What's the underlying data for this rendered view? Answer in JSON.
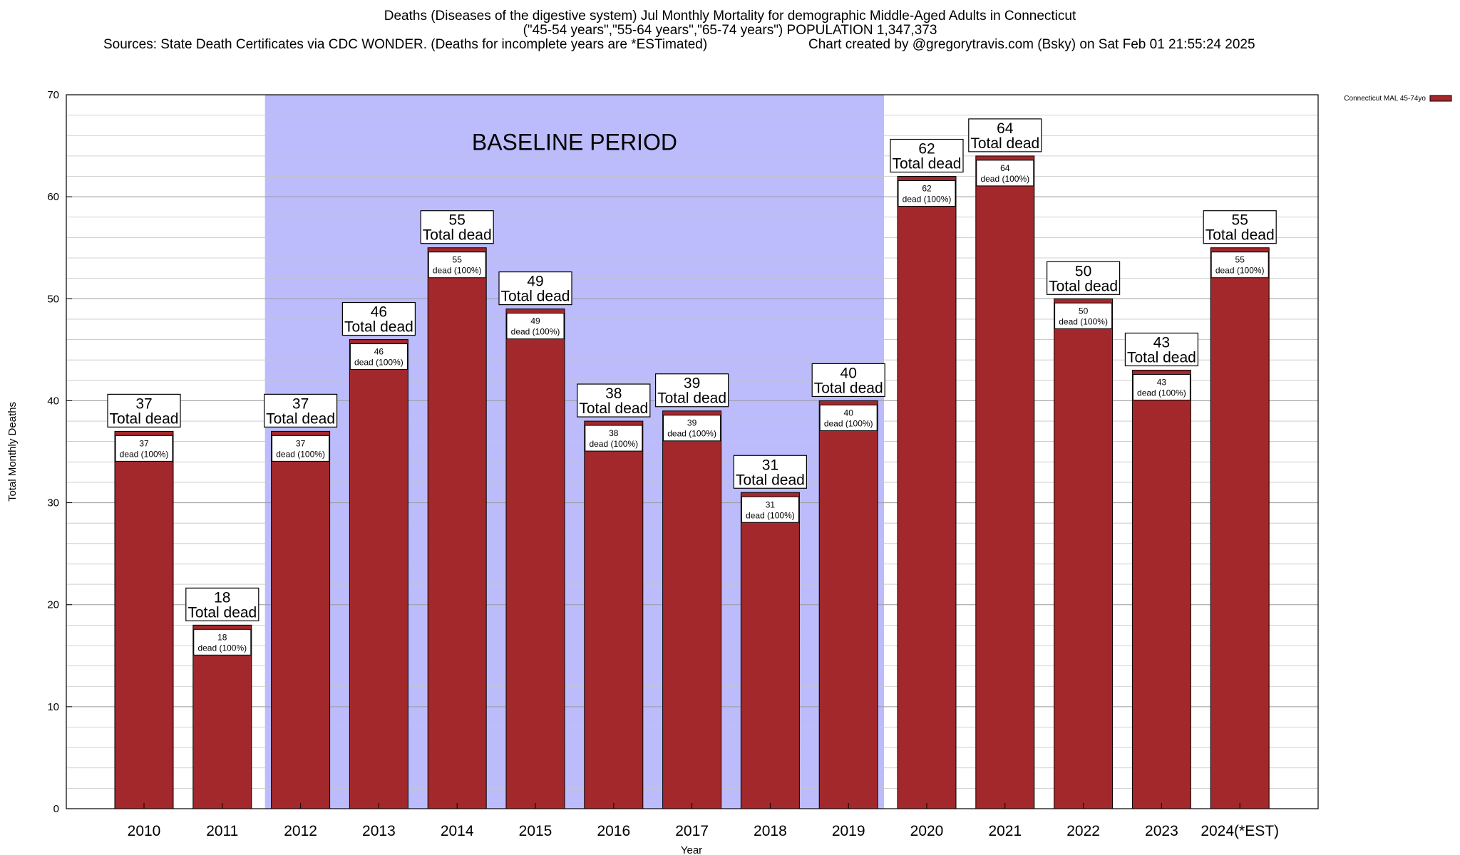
{
  "chart_data": {
    "type": "bar",
    "title_line1": "Deaths (Diseases of the digestive system) Jul Monthly Mortality for demographic Middle-Aged Adults in Connecticut",
    "title_line2": "(\"45-54 years\",\"55-64 years\",\"65-74 years\") POPULATION 1,347,373",
    "sources": "Sources: State Death Certificates via CDC WONDER. (Deaths for incomplete years are *ESTimated)",
    "credit": "Chart created by @gregorytravis.com (Bsky) on Sat Feb 01 21:55:24 2025",
    "xlabel": "Year",
    "ylabel": "Total Monthly Deaths",
    "ylim": [
      0,
      70
    ],
    "yticks": [
      0,
      10,
      20,
      30,
      40,
      50,
      60,
      70
    ],
    "grid": true,
    "categories": [
      "2010",
      "2011",
      "2012",
      "2013",
      "2014",
      "2015",
      "2016",
      "2017",
      "2018",
      "2019",
      "2020",
      "2021",
      "2022",
      "2023",
      "2024(*EST)"
    ],
    "series": [
      {
        "name": "Connecticut MAL 45-74yo",
        "color": "#a2282b",
        "values": [
          37,
          18,
          37,
          46,
          55,
          49,
          38,
          39,
          31,
          40,
          62,
          64,
          50,
          43,
          55
        ]
      }
    ],
    "total_label_suffix": "Total dead",
    "inner_label_suffix": "dead (100%)",
    "baseline": {
      "label": "BASELINE PERIOD",
      "from": "2012",
      "to": "2019",
      "color": "#bcbcfc"
    },
    "legend_position": "top-right"
  }
}
